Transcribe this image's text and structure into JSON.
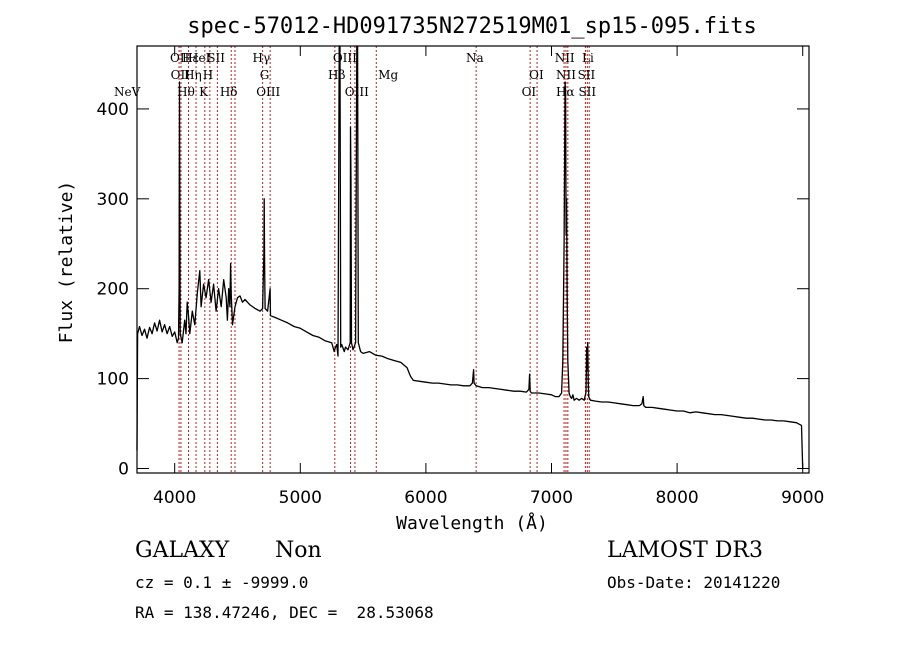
{
  "chart_data": {
    "type": "line",
    "title": "spec-57012-HD091735N272519M01_sp15-095.fits",
    "xlabel": "Wavelength (Å)",
    "ylabel": "Flux (relative)",
    "xlim": [
      3700,
      9050
    ],
    "ylim": [
      -5,
      470
    ],
    "x_ticks": [
      4000,
      5000,
      6000,
      7000,
      8000,
      9000
    ],
    "y_ticks": [
      0,
      100,
      200,
      300,
      400
    ],
    "line_color": "#000000",
    "marker_color": "#b22222",
    "series": [
      {
        "values": [
          [
            3700,
            20
          ],
          [
            3705,
            150
          ],
          [
            3720,
            158
          ],
          [
            3740,
            148
          ],
          [
            3760,
            155
          ],
          [
            3780,
            145
          ],
          [
            3800,
            157
          ],
          [
            3820,
            150
          ],
          [
            3840,
            162
          ],
          [
            3860,
            153
          ],
          [
            3880,
            165
          ],
          [
            3900,
            152
          ],
          [
            3920,
            160
          ],
          [
            3940,
            150
          ],
          [
            3960,
            158
          ],
          [
            3980,
            147
          ],
          [
            4000,
            152
          ],
          [
            4020,
            140
          ],
          [
            4030,
            145
          ],
          [
            4035,
            200
          ],
          [
            4038,
            430
          ],
          [
            4040,
            340
          ],
          [
            4044,
            150
          ],
          [
            4060,
            140
          ],
          [
            4080,
            165
          ],
          [
            4090,
            150
          ],
          [
            4100,
            185
          ],
          [
            4110,
            170
          ],
          [
            4120,
            150
          ],
          [
            4140,
            175
          ],
          [
            4160,
            160
          ],
          [
            4180,
            195
          ],
          [
            4200,
            220
          ],
          [
            4210,
            180
          ],
          [
            4230,
            205
          ],
          [
            4250,
            190
          ],
          [
            4270,
            210
          ],
          [
            4290,
            185
          ],
          [
            4310,
            205
          ],
          [
            4330,
            175
          ],
          [
            4350,
            200
          ],
          [
            4370,
            180
          ],
          [
            4390,
            210
          ],
          [
            4410,
            190
          ],
          [
            4420,
            165
          ],
          [
            4430,
            200
          ],
          [
            4440,
            180
          ],
          [
            4445,
            228
          ],
          [
            4450,
            195
          ],
          [
            4460,
            160
          ],
          [
            4480,
            180
          ],
          [
            4500,
            190
          ],
          [
            4520,
            192
          ],
          [
            4540,
            185
          ],
          [
            4560,
            188
          ],
          [
            4600,
            182
          ],
          [
            4640,
            178
          ],
          [
            4680,
            175
          ],
          [
            4700,
            178
          ],
          [
            4710,
            240
          ],
          [
            4713,
            300
          ],
          [
            4716,
            230
          ],
          [
            4720,
            178
          ],
          [
            4740,
            175
          ],
          [
            4760,
            200
          ],
          [
            4763,
            170
          ],
          [
            4800,
            168
          ],
          [
            4850,
            165
          ],
          [
            4900,
            162
          ],
          [
            4950,
            158
          ],
          [
            5000,
            156
          ],
          [
            5050,
            152
          ],
          [
            5100,
            148
          ],
          [
            5150,
            146
          ],
          [
            5200,
            142
          ],
          [
            5250,
            140
          ],
          [
            5270,
            130
          ],
          [
            5280,
            135
          ],
          [
            5290,
            138
          ],
          [
            5300,
            125
          ],
          [
            5310,
            480
          ],
          [
            5316,
            480
          ],
          [
            5322,
            135
          ],
          [
            5330,
            138
          ],
          [
            5350,
            130
          ],
          [
            5360,
            135
          ],
          [
            5380,
            132
          ],
          [
            5397,
            140
          ],
          [
            5400,
            380
          ],
          [
            5404,
            320
          ],
          [
            5408,
            140
          ],
          [
            5420,
            132
          ],
          [
            5440,
            140
          ],
          [
            5450,
            480
          ],
          [
            5456,
            480
          ],
          [
            5462,
            140
          ],
          [
            5480,
            130
          ],
          [
            5500,
            128
          ],
          [
            5550,
            130
          ],
          [
            5600,
            126
          ],
          [
            5650,
            125
          ],
          [
            5700,
            122
          ],
          [
            5750,
            120
          ],
          [
            5800,
            118
          ],
          [
            5850,
            112
          ],
          [
            5870,
            105
          ],
          [
            5880,
            102
          ],
          [
            5900,
            98
          ],
          [
            5950,
            97
          ],
          [
            6000,
            96
          ],
          [
            6050,
            95
          ],
          [
            6100,
            95
          ],
          [
            6150,
            94
          ],
          [
            6200,
            93
          ],
          [
            6250,
            93
          ],
          [
            6300,
            92
          ],
          [
            6350,
            92
          ],
          [
            6370,
            95
          ],
          [
            6380,
            110
          ],
          [
            6384,
            95
          ],
          [
            6400,
            92
          ],
          [
            6450,
            90
          ],
          [
            6500,
            90
          ],
          [
            6550,
            89
          ],
          [
            6600,
            88
          ],
          [
            6650,
            87
          ],
          [
            6700,
            86
          ],
          [
            6750,
            86
          ],
          [
            6800,
            85
          ],
          [
            6820,
            88
          ],
          [
            6826,
            105
          ],
          [
            6830,
            86
          ],
          [
            6840,
            84
          ],
          [
            6900,
            84
          ],
          [
            6950,
            83
          ],
          [
            7000,
            82
          ],
          [
            7030,
            80
          ],
          [
            7060,
            80
          ],
          [
            7080,
            84
          ],
          [
            7090,
            120
          ],
          [
            7100,
            250
          ],
          [
            7108,
            430
          ],
          [
            7112,
            420
          ],
          [
            7116,
            260
          ],
          [
            7120,
            300
          ],
          [
            7124,
            200
          ],
          [
            7130,
            120
          ],
          [
            7140,
            84
          ],
          [
            7150,
            80
          ],
          [
            7160,
            78
          ],
          [
            7170,
            82
          ],
          [
            7180,
            76
          ],
          [
            7200,
            78
          ],
          [
            7220,
            76
          ],
          [
            7240,
            78
          ],
          [
            7260,
            76
          ],
          [
            7275,
            85
          ],
          [
            7280,
            135
          ],
          [
            7284,
            110
          ],
          [
            7288,
            140
          ],
          [
            7292,
            100
          ],
          [
            7296,
            80
          ],
          [
            7310,
            76
          ],
          [
            7350,
            75
          ],
          [
            7400,
            74
          ],
          [
            7450,
            74
          ],
          [
            7500,
            73
          ],
          [
            7550,
            72
          ],
          [
            7600,
            71
          ],
          [
            7650,
            70
          ],
          [
            7700,
            70
          ],
          [
            7720,
            72
          ],
          [
            7730,
            80
          ],
          [
            7735,
            70
          ],
          [
            7750,
            68
          ],
          [
            7800,
            68
          ],
          [
            7850,
            67
          ],
          [
            7900,
            66
          ],
          [
            7950,
            65
          ],
          [
            8000,
            64
          ],
          [
            8050,
            64
          ],
          [
            8100,
            62
          ],
          [
            8150,
            63
          ],
          [
            8200,
            62
          ],
          [
            8250,
            61
          ],
          [
            8300,
            60
          ],
          [
            8350,
            60
          ],
          [
            8400,
            59
          ],
          [
            8450,
            58
          ],
          [
            8500,
            57
          ],
          [
            8550,
            56
          ],
          [
            8600,
            56
          ],
          [
            8650,
            55
          ],
          [
            8700,
            54
          ],
          [
            8750,
            54
          ],
          [
            8800,
            53
          ],
          [
            8850,
            53
          ],
          [
            8900,
            52
          ],
          [
            8950,
            51
          ],
          [
            8990,
            48
          ],
          [
            9000,
            0
          ]
        ]
      }
    ],
    "lines": [
      {
        "label": "NeV",
        "wavelength": 3726,
        "row": 2,
        "align": "end"
      },
      {
        "label": "OII",
        "wavelength": 4040,
        "row": 0,
        "align": "middle"
      },
      {
        "label": "OII",
        "wavelength": 4045,
        "row": 1,
        "align": "middle"
      },
      {
        "label": "Hθ",
        "wavelength": 4090,
        "row": 2,
        "align": "middle"
      },
      {
        "label": "Hε",
        "wavelength": 4125,
        "row": 0,
        "align": "middle"
      },
      {
        "label": "Hη",
        "wavelength": 4145,
        "row": 1,
        "align": "middle"
      },
      {
        "label": "HeI",
        "wavelength": 4195,
        "row": 0,
        "align": "middle"
      },
      {
        "label": "K",
        "wavelength": 4230,
        "row": 2,
        "align": "middle"
      },
      {
        "label": "H",
        "wavelength": 4265,
        "row": 1,
        "align": "middle"
      },
      {
        "label": "SII",
        "wavelength": 4330,
        "row": 0,
        "align": "middle"
      },
      {
        "label": "Hδ",
        "wavelength": 4430,
        "row": 2,
        "align": "middle"
      },
      {
        "label": "Hγ",
        "wavelength": 4690,
        "row": 0,
        "align": "middle"
      },
      {
        "label": "G",
        "wavelength": 4715,
        "row": 1,
        "align": "middle"
      },
      {
        "label": "OIII",
        "wavelength": 4745,
        "row": 2,
        "align": "middle"
      },
      {
        "label": "Hβ",
        "wavelength": 5290,
        "row": 1,
        "align": "middle"
      },
      {
        "label": "OIII",
        "wavelength": 5355,
        "row": 0,
        "align": "middle"
      },
      {
        "label": "OIII",
        "wavelength": 5450,
        "row": 2,
        "align": "middle"
      },
      {
        "label": "Mg",
        "wavelength": 5620,
        "row": 1,
        "align": "start"
      },
      {
        "label": "Na",
        "wavelength": 6390,
        "row": 0,
        "align": "middle"
      },
      {
        "label": "OI",
        "wavelength": 6820,
        "row": 2,
        "align": "middle"
      },
      {
        "label": "OI",
        "wavelength": 6880,
        "row": 1,
        "align": "middle"
      },
      {
        "label": "NII",
        "wavelength": 7105,
        "row": 0,
        "align": "middle"
      },
      {
        "label": "NII",
        "wavelength": 7115,
        "row": 1,
        "align": "middle"
      },
      {
        "label": "Hα",
        "wavelength": 7110,
        "row": 2,
        "align": "middle"
      },
      {
        "label": "SII",
        "wavelength": 7278,
        "row": 1,
        "align": "middle"
      },
      {
        "label": "SII",
        "wavelength": 7285,
        "row": 2,
        "align": "middle"
      },
      {
        "label": "Li",
        "wavelength": 7290,
        "row": 0,
        "align": "middle"
      }
    ],
    "marker_wavelengths": [
      4035,
      4050,
      4110,
      4170,
      4240,
      4280,
      4340,
      4450,
      4480,
      4700,
      4760,
      5275,
      5400,
      5435,
      5605,
      6400,
      6830,
      6885,
      7100,
      7115,
      7130,
      7270,
      7285,
      7300
    ]
  },
  "info": {
    "class_label": "GALAXY",
    "subclass_label": "Non",
    "survey": "LAMOST DR3",
    "cz_line": "cz = 0.1 ± -9999.0",
    "obs_date_line": "Obs-Date: 20141220",
    "radec_line": "RA = 138.47246, DEC =  28.53068"
  }
}
